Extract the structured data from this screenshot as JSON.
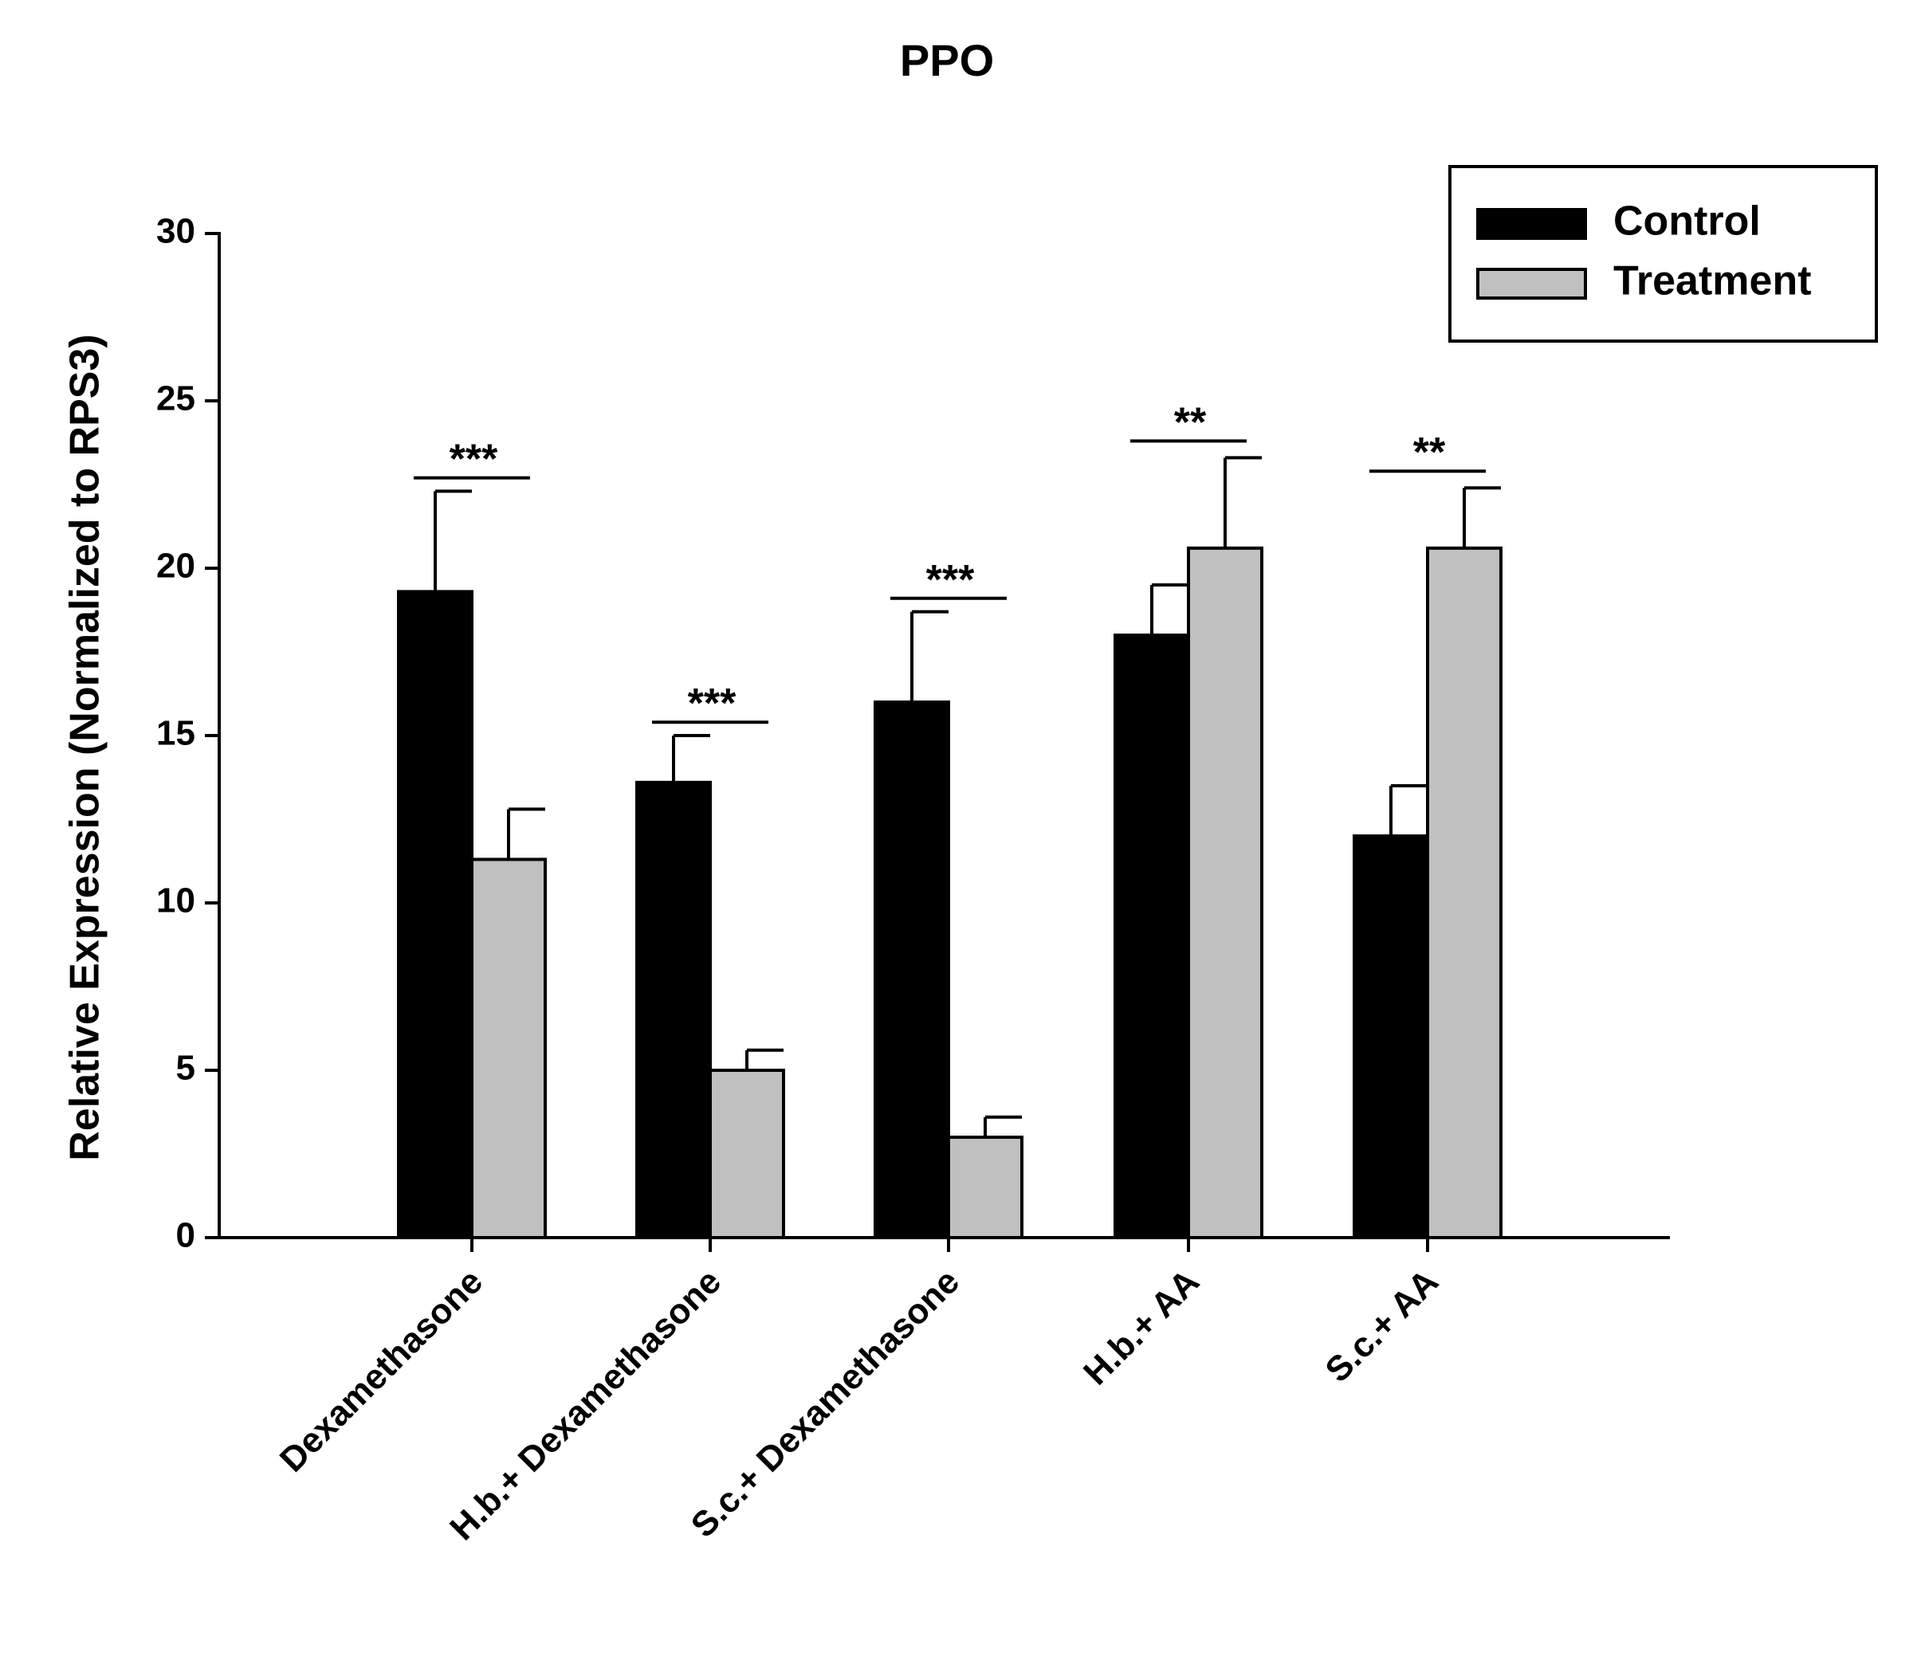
{
  "chart_data": {
    "type": "bar",
    "title": "PPO",
    "xlabel": "",
    "ylabel": "Relative Expression (Normalized to RPS3)",
    "ylim": [
      0,
      30
    ],
    "yticks": [
      0,
      5,
      10,
      15,
      20,
      25,
      30
    ],
    "categories": [
      "Dexamethasone",
      "H.b.+ Dexamethasone",
      "S.c.+ Dexamethasone",
      "H.b.+ AA",
      "S.c.+ AA"
    ],
    "series": [
      {
        "name": "Control",
        "color": "#000000",
        "values": [
          19.3,
          13.6,
          16.0,
          18.0,
          12.0
        ],
        "errors": [
          3.0,
          1.4,
          2.7,
          1.5,
          1.5
        ]
      },
      {
        "name": "Treatment",
        "color": "#c0c0c0",
        "values": [
          11.3,
          5.0,
          3.0,
          20.6,
          20.6
        ],
        "errors": [
          1.5,
          0.6,
          0.6,
          2.7,
          1.8
        ]
      }
    ],
    "significance": [
      {
        "category": "Dexamethasone",
        "label": "***",
        "y": 22.7
      },
      {
        "category": "H.b.+ Dexamethasone",
        "label": "***",
        "y": 15.4
      },
      {
        "category": "S.c.+ Dexamethasone",
        "label": "***",
        "y": 19.1
      },
      {
        "category": "H.b.+ AA",
        "label": "**",
        "y": 23.8
      },
      {
        "category": "S.c.+ AA",
        "label": "**",
        "y": 22.9
      }
    ],
    "legend": {
      "position": "top-right",
      "entries": [
        "Control",
        "Treatment"
      ]
    }
  }
}
